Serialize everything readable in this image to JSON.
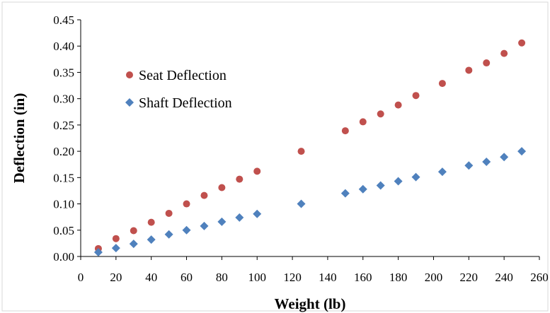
{
  "chart_data": {
    "type": "scatter",
    "xlabel": "Weight (lb)",
    "ylabel": "Deflection (in)",
    "xlim": [
      0,
      260
    ],
    "ylim": [
      0,
      0.45
    ],
    "xticks": [
      "0",
      "20",
      "40",
      "60",
      "80",
      "100",
      "120",
      "140",
      "160",
      "180",
      "200",
      "220",
      "240",
      "260"
    ],
    "yticks": [
      "0.00",
      "0.05",
      "0.10",
      "0.15",
      "0.20",
      "0.25",
      "0.30",
      "0.35",
      "0.40",
      "0.45"
    ],
    "grid": false,
    "legend_position": "top-left",
    "series": [
      {
        "name": "Seat Deflection",
        "marker": "circle",
        "color": "#C0504D",
        "x": [
          10,
          20,
          30,
          40,
          50,
          60,
          70,
          80,
          90,
          100,
          125,
          150,
          160,
          170,
          180,
          190,
          205,
          220,
          230,
          240,
          250
        ],
        "y": [
          0.015,
          0.034,
          0.049,
          0.065,
          0.082,
          0.1,
          0.116,
          0.131,
          0.147,
          0.162,
          0.2,
          0.239,
          0.256,
          0.271,
          0.288,
          0.306,
          0.329,
          0.354,
          0.368,
          0.386,
          0.406
        ]
      },
      {
        "name": "Shaft Deflection",
        "marker": "diamond",
        "color": "#4F81BD",
        "x": [
          10,
          20,
          30,
          40,
          50,
          60,
          70,
          80,
          90,
          100,
          125,
          150,
          160,
          170,
          180,
          190,
          205,
          220,
          230,
          240,
          250
        ],
        "y": [
          0.008,
          0.016,
          0.024,
          0.032,
          0.042,
          0.05,
          0.058,
          0.066,
          0.074,
          0.081,
          0.1,
          0.12,
          0.128,
          0.135,
          0.143,
          0.151,
          0.161,
          0.173,
          0.18,
          0.189,
          0.2
        ]
      }
    ]
  }
}
